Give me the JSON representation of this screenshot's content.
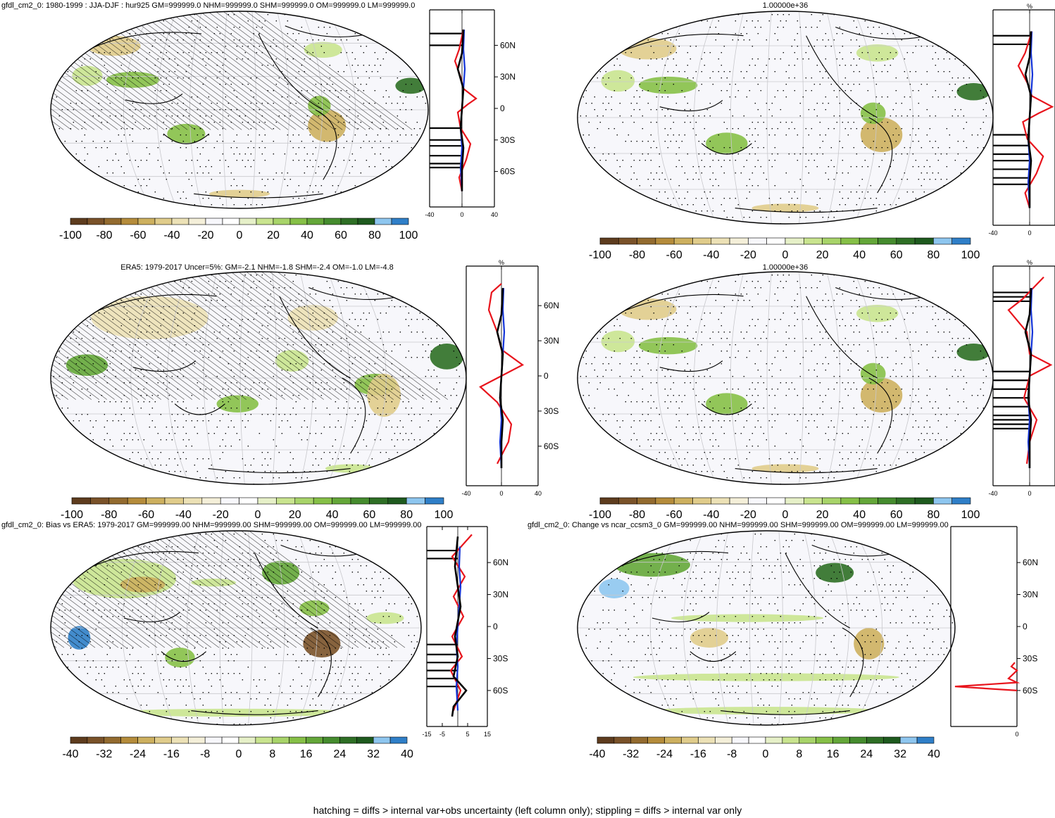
{
  "figure_footer": "hatching = diffs > internal var+obs uncertainty (left column only); stippling = diffs > internal var only",
  "panels": {
    "p1": {
      "title": "gfdl_cm2_0: 1980-1999 : JJA-DJF : hur925 GM=999999.0 NHM=999999.0 SHM=999999.0 OM=999999.0 LM=999999.0"
    },
    "p2": {
      "title": "1.00000e+36"
    },
    "p3": {
      "title": "ERA5: 1979-2017 Uncer=5%: GM=-2.1 NHM=-1.8 SHM=-2.4 OM=-1.0 LM=-4.8"
    },
    "p4": {
      "title": "1.00000e+36"
    },
    "p5": {
      "title": "gfdl_cm2_0: Bias vs ERA5: 1979-2017 GM=999999.00 NHM=999999.00 SHM=999999.00 OM=999999.00 LM=999999.00"
    },
    "p6": {
      "title": "gfdl_cm2_0: Change vs ncar_ccsm3_0 GM=999999.00 NHM=999999.00 SHM=999999.00 OM=999999.00 LM=999999.00"
    }
  },
  "colorbars": {
    "main": {
      "labels": [
        "-100",
        "-80",
        "-60",
        "-40",
        "-20",
        "0",
        "20",
        "40",
        "60",
        "80",
        "100"
      ]
    },
    "diff": {
      "labels": [
        "-40",
        "-32",
        "-24",
        "-16",
        "-8",
        "0",
        "8",
        "16",
        "24",
        "32",
        "40"
      ]
    },
    "colors": [
      "#5e3c1e",
      "#7a5229",
      "#936b2f",
      "#b58c3b",
      "#cdb05f",
      "#e0cc8b",
      "#ece1b6",
      "#f4efd9",
      "#f7f7fb",
      "#ffffff",
      "#e6f0c8",
      "#c9e48f",
      "#a8d46a",
      "#86c047",
      "#64a739",
      "#458c2e",
      "#2e6f25",
      "#1e5a1e",
      "#8ec6ef",
      "#2f7fc8"
    ]
  },
  "profile_axes": {
    "lat_labels": [
      "60N",
      "30N",
      "0",
      "30S",
      "60S"
    ],
    "p1_x": [
      "-40",
      "0",
      "40"
    ],
    "p2_x": [
      "-40",
      "0"
    ],
    "p3_x": [
      "-40",
      "0",
      "40"
    ],
    "p4_x": [
      "-40",
      "0"
    ],
    "p5_x": [
      "-15",
      "-5",
      "5",
      "15"
    ],
    "p6_x": [
      "0"
    ],
    "pct": "%"
  },
  "series_colors": {
    "model": "#e8141c",
    "obs": "#1233d8",
    "mean": "#000000"
  }
}
